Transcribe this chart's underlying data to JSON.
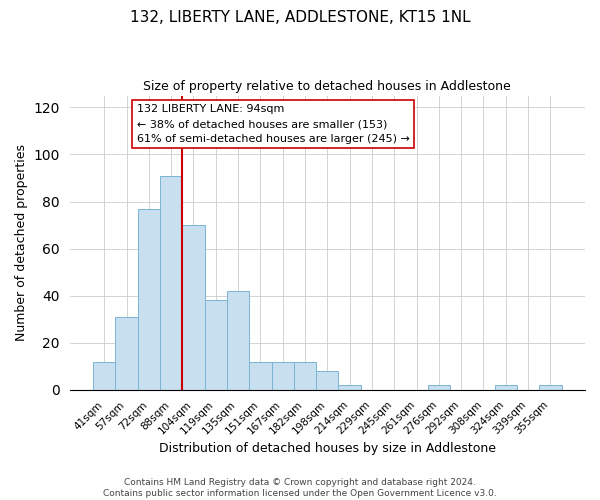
{
  "title": "132, LIBERTY LANE, ADDLESTONE, KT15 1NL",
  "subtitle": "Size of property relative to detached houses in Addlestone",
  "xlabel": "Distribution of detached houses by size in Addlestone",
  "ylabel": "Number of detached properties",
  "footer_line1": "Contains HM Land Registry data © Crown copyright and database right 2024.",
  "footer_line2": "Contains public sector information licensed under the Open Government Licence v3.0.",
  "bar_labels": [
    "41sqm",
    "57sqm",
    "72sqm",
    "88sqm",
    "104sqm",
    "119sqm",
    "135sqm",
    "151sqm",
    "167sqm",
    "182sqm",
    "198sqm",
    "214sqm",
    "229sqm",
    "245sqm",
    "261sqm",
    "276sqm",
    "292sqm",
    "308sqm",
    "324sqm",
    "339sqm",
    "355sqm"
  ],
  "bar_values": [
    12,
    31,
    77,
    91,
    70,
    38,
    42,
    12,
    12,
    12,
    8,
    2,
    0,
    0,
    0,
    2,
    0,
    0,
    2,
    0,
    2
  ],
  "bar_color": "#c8dff0",
  "bar_edgecolor": "#7ab4d4",
  "ylim": [
    0,
    125
  ],
  "yticks": [
    0,
    20,
    40,
    60,
    80,
    100,
    120
  ],
  "property_line_x": 3.5,
  "property_line_color": "#cc0000",
  "annotation_title": "132 LIBERTY LANE: 94sqm",
  "annotation_line1": "← 38% of detached houses are smaller (153)",
  "annotation_line2": "61% of semi-detached houses are larger (245) →"
}
